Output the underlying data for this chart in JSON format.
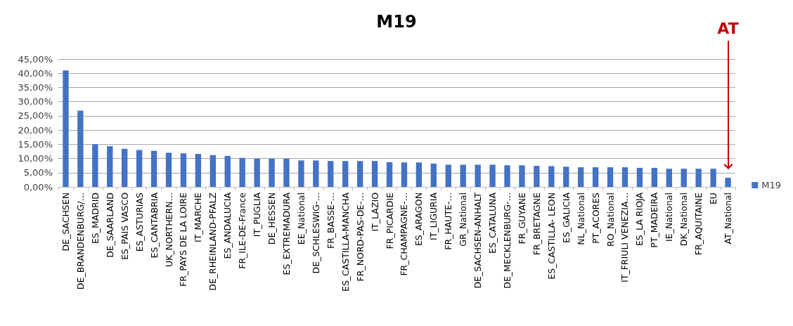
{
  "chart_data": {
    "type": "bar",
    "title": "M19",
    "categories": [
      "DE_SACHSEN",
      "DE_BRANDENBURG/…",
      "ES_MADRID",
      "DE_SAARLAND",
      "ES_PAIS VASCO",
      "ES_ASTURIAS",
      "ES_CANTABRIA",
      "UK_NORTHERN…",
      "FR_PAYS DE LA LOIRE",
      "IT_MARCHE",
      "DE_RHEINLAND-PFALZ",
      "ES_ANDALUCIA",
      "FR_ILE-DE-France",
      "IT_PUGLIA",
      "DE_HESSEN",
      "ES_EXTREMADURA",
      "EE_National",
      "DE_SCHLESWIG-…",
      "FR_BASSE-…",
      "ES_CASTILLA-MANCHA",
      "FR_NORD-PAS-DE-…",
      "IT_LAZIO",
      "FR_PICARDIE",
      "FR_CHAMPAGNE-…",
      "ES_ARAGON",
      "IT_LIGURIA",
      "FR_HAUTE-…",
      "GR_National",
      "DE_SACHSEN-ANHALT",
      "ES_CATALUNA",
      "DE_MECKLENBURG-…",
      "FR_GUYANE",
      "FR_BRETAGNE",
      "ES_CASTILLA- LEON",
      "ES_GALICIA",
      "NL_National",
      "PT_ACORES",
      "RO_National",
      "IT_FRIULI VENEZIA…",
      "ES_LA RIOJA",
      "PT_MADEIRA",
      "IE_National",
      "DK_National",
      "FR_AQUITAINE",
      "EU",
      "AT_National"
    ],
    "series": [
      {
        "name": "M19",
        "color": "#4472c4",
        "values": [
          41,
          26.8,
          15,
          14.3,
          13.4,
          13,
          12.7,
          12,
          11.8,
          11.6,
          11.2,
          10.9,
          10.2,
          9.9,
          9.9,
          9.9,
          9.3,
          9.3,
          9.1,
          9.1,
          9.1,
          9.1,
          8.7,
          8.6,
          8.6,
          8.2,
          7.8,
          7.8,
          7.8,
          7.8,
          7.6,
          7.6,
          7.4,
          7.3,
          7.1,
          6.9,
          6.9,
          6.9,
          6.9,
          6.7,
          6.7,
          6.4,
          6.4,
          6.4,
          6.4,
          3.2
        ]
      }
    ],
    "ylim": [
      0,
      45
    ],
    "yticks": [
      {
        "value": 0,
        "label": "0,00%"
      },
      {
        "value": 5,
        "label": "5,00%"
      },
      {
        "value": 10,
        "label": "10,00%"
      },
      {
        "value": 15,
        "label": "15,00%"
      },
      {
        "value": 20,
        "label": "20,00%"
      },
      {
        "value": 25,
        "label": "25,00%"
      },
      {
        "value": 30,
        "label": "30,00%"
      },
      {
        "value": 35,
        "label": "35,00%"
      },
      {
        "value": 40,
        "label": "40,00%"
      },
      {
        "value": 45,
        "label": "45,00%"
      }
    ],
    "grid": "y",
    "legend": "right",
    "annotations": [
      "AT"
    ]
  }
}
